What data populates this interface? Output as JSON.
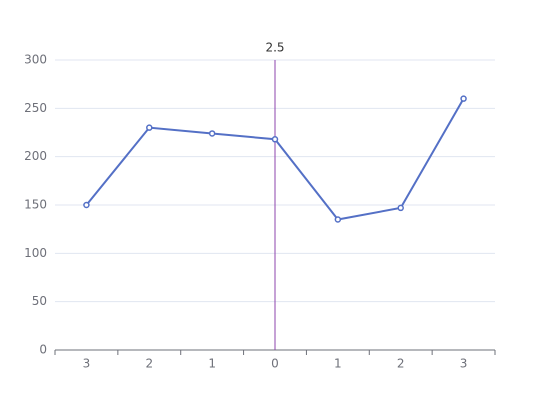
{
  "chart_data": {
    "type": "line",
    "categories": [
      "3",
      "2",
      "1",
      "0",
      "1",
      "2",
      "3"
    ],
    "values": [
      150,
      230,
      224,
      218,
      135,
      147,
      260
    ],
    "color": "#5470c6",
    "ylim": [
      0,
      300
    ],
    "yticks": [
      0,
      50,
      100,
      150,
      200,
      250,
      300
    ],
    "grid": true,
    "annotation": {
      "text": "2.5",
      "category_index": 3,
      "color": "#8e44ad"
    }
  }
}
